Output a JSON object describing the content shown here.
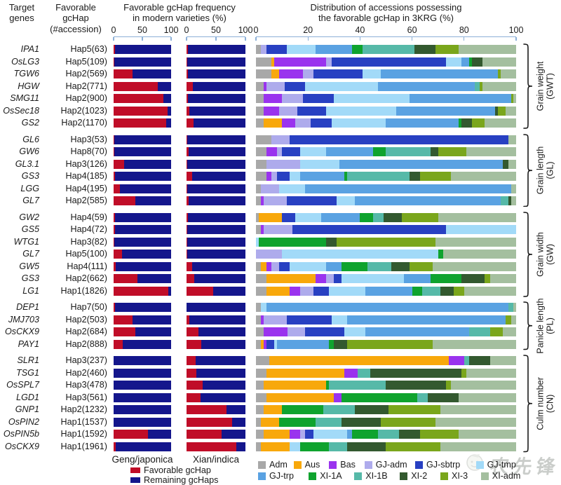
{
  "header": {
    "col_target_genes": "Target\ngenes",
    "col_favorable_gchap": "Favorable\ngcHap\n(#accession)",
    "col_freq_title": "Favorable gcHap frequency\nin modern varieties (%)",
    "col_dist_title": "Distribution of accessions possessing\nthe favorable gcHap in 3KRG (%)"
  },
  "footer": {
    "geng_label": "Geng/japonica",
    "xian_label": "Xian/indica",
    "stack_legend": [
      {
        "label": "Favorable gcHap",
        "color": "#c00d28"
      },
      {
        "label": "Remaining gcHaps",
        "color": "#14168c"
      }
    ]
  },
  "colors": {
    "favorable": "#c00d28",
    "remaining": "#14168c",
    "axis": "#8cb0d8",
    "categories": {
      "Adm": "#a8a8a8",
      "Aus": "#f8a80b",
      "Bas": "#9a33ee",
      "GJ-adm": "#aeabec",
      "GJ-sbtrp": "#2840c2",
      "GJ-tmp": "#a2daf8",
      "GJ-trp": "#5aa2e2",
      "XI-1A": "#0fa32e",
      "XI-1B": "#56b9a8",
      "XI-2": "#33592f",
      "XI-3": "#7aa61c",
      "XI-adm": "#a4bf9f"
    }
  },
  "legend": {
    "rows": [
      [
        "Adm",
        "Aus",
        "Bas",
        "GJ-adm",
        "GJ-sbtrp",
        "GJ-tmp"
      ],
      [
        "GJ-trp",
        "XI-1A",
        "XI-1B",
        "XI-2",
        "XI-3",
        "XI-adm"
      ]
    ]
  },
  "watermark": {
    "text": "农先锋"
  },
  "chart_data": {
    "type": "bar",
    "orientation": "horizontal",
    "charts": [
      {
        "id": "geng_freq",
        "title": "Geng/japonica",
        "xlim": [
          0,
          100
        ],
        "ticks": [
          0,
          50,
          100
        ],
        "stack": [
          "Favorable gcHap",
          "Remaining gcHaps"
        ]
      },
      {
        "id": "xian_freq",
        "title": "Xian/indica",
        "xlim": [
          0,
          100
        ],
        "ticks": [
          0,
          50,
          100
        ],
        "stack": [
          "Favorable gcHap",
          "Remaining gcHaps"
        ]
      },
      {
        "id": "dist_3krg",
        "title": "Distribution of accessions possessing the favorable gcHap in 3KRG (%)",
        "xlim": [
          0,
          100
        ],
        "ticks": [
          0,
          20,
          40,
          60,
          80,
          100
        ]
      }
    ],
    "dist_categories": [
      "Adm",
      "Aus",
      "Bas",
      "GJ-adm",
      "GJ-sbtrp",
      "GJ-tmp",
      "GJ-trp",
      "XI-1A",
      "XI-1B",
      "XI-2",
      "XI-3",
      "XI-adm"
    ],
    "groups": [
      {
        "trait": "Grain weight (GWT)",
        "trait_lines": "Grain weight\n(GWT)",
        "rows": [
          {
            "gene": "IPA1",
            "hap": "Hap5(63)",
            "geng_favorable_pct": 2,
            "xian_favorable_pct": 2,
            "dist_pct": [
              2,
              0,
              0,
              2,
              8,
              11,
              14,
              4,
              20,
              8,
              9,
              22
            ]
          },
          {
            "gene": "OsLG3",
            "hap": "Hap5(109)",
            "geng_favorable_pct": 1,
            "xian_favorable_pct": 1,
            "dist_pct": [
              6,
              1,
              20,
              2,
              44,
              6,
              3,
              1,
              0,
              4,
              0,
              13
            ]
          },
          {
            "gene": "TGW6",
            "hap": "Hap2(569)",
            "geng_favorable_pct": 33,
            "xian_favorable_pct": 2,
            "dist_pct": [
              6,
              3,
              9,
              4,
              19,
              7,
              45,
              0,
              0,
              0,
              1,
              6
            ]
          },
          {
            "gene": "HGW",
            "hap": "Hap2(771)",
            "geng_favorable_pct": 77,
            "xian_favorable_pct": 11,
            "dist_pct": [
              3,
              0,
              1,
              7,
              8,
              28,
              37,
              0,
              2,
              0,
              1,
              13
            ]
          },
          {
            "gene": "SMG11",
            "hap": "Hap2(900)",
            "geng_favorable_pct": 86,
            "xian_favorable_pct": 2,
            "dist_pct": [
              3,
              0,
              7,
              8,
              12,
              29,
              39,
              0,
              0,
              0,
              1,
              1
            ]
          },
          {
            "gene": "OsSec18",
            "hap": "Hap2(1023)",
            "geng_favorable_pct": 94,
            "xian_favorable_pct": 5,
            "dist_pct": [
              3,
              0,
              6,
              7,
              11,
              27,
              38,
              0,
              0,
              1,
              3,
              4
            ]
          },
          {
            "gene": "GS2",
            "hap": "Hap2(1170)",
            "geng_favorable_pct": 91,
            "xian_favorable_pct": 12,
            "dist_pct": [
              3,
              7,
              5,
              6,
              8,
              21,
              28,
              1,
              0,
              4,
              5,
              12
            ]
          }
        ]
      },
      {
        "trait": "Grain length (GL)",
        "trait_lines": "Grain length\n(GL)",
        "rows": [
          {
            "gene": "GL6",
            "hap": "Hap3(53)",
            "geng_favorable_pct": 1,
            "xian_favorable_pct": 1,
            "dist_pct": [
              6,
              0,
              0,
              7,
              84,
              0,
              0,
              0,
              0,
              0,
              0,
              3
            ]
          },
          {
            "gene": "GW6",
            "hap": "Hap8(70)",
            "geng_favorable_pct": 1,
            "xian_favorable_pct": 3,
            "dist_pct": [
              4,
              0,
              4,
              2,
              7,
              10,
              18,
              5,
              17,
              3,
              11,
              19
            ]
          },
          {
            "gene": "GL3.1",
            "hap": "Hap3(126)",
            "geng_favorable_pct": 18,
            "xian_favorable_pct": 1,
            "dist_pct": [
              4,
              0,
              0,
              13,
              0,
              15,
              63,
              0,
              0,
              2,
              0,
              3
            ]
          },
          {
            "gene": "GS3",
            "hap": "Hap4(185)",
            "geng_favorable_pct": 3,
            "xian_favorable_pct": 10,
            "dist_pct": [
              4,
              0,
              2,
              2,
              5,
              4,
              17,
              1,
              24,
              4,
              12,
              25
            ]
          },
          {
            "gene": "LGG",
            "hap": "Hap4(195)",
            "geng_favorable_pct": 11,
            "xian_favorable_pct": 1,
            "dist_pct": [
              2,
              0,
              0,
              7,
              0,
              10,
              79,
              0,
              0,
              0,
              0,
              2
            ]
          },
          {
            "gene": "GL7",
            "hap": "Hap2(585)",
            "geng_favorable_pct": 38,
            "xian_favorable_pct": 3,
            "dist_pct": [
              2,
              0,
              1,
              9,
              19,
              7,
              56,
              0,
              3,
              1,
              0,
              2
            ]
          }
        ]
      },
      {
        "trait": "Grain width (GW)",
        "trait_lines": "Grain width\n(GW)",
        "rows": [
          {
            "gene": "GW2",
            "hap": "Hap4(59)",
            "geng_favorable_pct": 3,
            "xian_favorable_pct": 2,
            "dist_pct": [
              1,
              9,
              0,
              0,
              5,
              10,
              15,
              5,
              4,
              7,
              14,
              30
            ]
          },
          {
            "gene": "GS5",
            "hap": "Hap4(72)",
            "geng_favorable_pct": 2,
            "xian_favorable_pct": 1,
            "dist_pct": [
              2,
              0,
              1,
              11,
              59,
              27,
              0,
              0,
              0,
              0,
              0,
              0
            ]
          },
          {
            "gene": "WTG1",
            "hap": "Hap3(82)",
            "geng_favorable_pct": 1,
            "xian_favorable_pct": 1,
            "dist_pct": [
              0,
              0,
              0,
              0,
              0,
              1,
              0,
              26,
              0,
              4,
              38,
              31
            ]
          },
          {
            "gene": "GL7",
            "hap": "Hap5(100)",
            "geng_favorable_pct": 15,
            "xian_favorable_pct": 1,
            "dist_pct": [
              0,
              0,
              0,
              10,
              0,
              60,
              0,
              2,
              0,
              0,
              0,
              28
            ]
          },
          {
            "gene": "GW5",
            "hap": "Hap4(111)",
            "geng_favorable_pct": 4,
            "xian_favorable_pct": 10,
            "dist_pct": [
              2,
              2,
              2,
              3,
              4,
              14,
              6,
              10,
              9,
              7,
              9,
              32
            ]
          },
          {
            "gene": "GS3",
            "hap": "Hap2(662)",
            "geng_favorable_pct": 42,
            "xian_favorable_pct": 13,
            "dist_pct": [
              4,
              19,
              4,
              3,
              3,
              24,
              10,
              12,
              0,
              9,
              2,
              10
            ]
          },
          {
            "gene": "LG1",
            "hap": "Hap1(1826)",
            "geng_favorable_pct": 95,
            "xian_favorable_pct": 45,
            "dist_pct": [
              4,
              9,
              4,
              5,
              6,
              14,
              18,
              4,
              7,
              5,
              4,
              20
            ]
          }
        ]
      },
      {
        "trait": "Panicle length (PL)",
        "trait_lines": "Panicle length\n(PL)",
        "rows": [
          {
            "gene": "DEP1",
            "hap": "Hap7(50)",
            "geng_favorable_pct": 2,
            "xian_favorable_pct": 0,
            "dist_pct": [
              2,
              0,
              0,
              0,
              0,
              2,
              93,
              0,
              2,
              0,
              0,
              1
            ]
          },
          {
            "gene": "JMJ703",
            "hap": "Hap2(503)",
            "geng_favorable_pct": 33,
            "xian_favorable_pct": 5,
            "dist_pct": [
              2,
              0,
              1,
              9,
              17,
              6,
              61,
              0,
              0,
              0,
              2,
              2
            ]
          },
          {
            "gene": "OsCKX9",
            "hap": "Hap2(684)",
            "geng_favorable_pct": 38,
            "xian_favorable_pct": 20,
            "dist_pct": [
              3,
              0,
              9,
              7,
              15,
              8,
              40,
              0,
              8,
              0,
              5,
              5
            ]
          },
          {
            "gene": "PAY1",
            "hap": "Hap2(888)",
            "geng_favorable_pct": 16,
            "xian_favorable_pct": 25,
            "dist_pct": [
              2,
              1,
              1,
              0,
              3,
              1,
              20,
              2,
              0,
              5,
              33,
              32
            ]
          }
        ]
      },
      {
        "trait": "Culm number (CN)",
        "trait_lines": "Culm number\n(CN)",
        "rows": [
          {
            "gene": "SLR1",
            "hap": "Hap3(237)",
            "geng_favorable_pct": 0,
            "xian_favorable_pct": 15,
            "dist_pct": [
              5,
              69,
              6,
              0,
              0,
              0,
              0,
              0,
              2,
              8,
              0,
              10
            ]
          },
          {
            "gene": "TSG1",
            "hap": "Hap2(460)",
            "geng_favorable_pct": 0,
            "xian_favorable_pct": 17,
            "dist_pct": [
              4,
              30,
              5,
              0,
              0,
              0,
              0,
              0,
              5,
              35,
              2,
              19
            ]
          },
          {
            "gene": "OsSPL7",
            "hap": "Hap3(478)",
            "geng_favorable_pct": 0,
            "xian_favorable_pct": 27,
            "dist_pct": [
              3,
              24,
              0,
              0,
              0,
              0,
              0,
              1,
              22,
              23,
              2,
              25
            ]
          },
          {
            "gene": "LGD1",
            "hap": "Hap3(561)",
            "geng_favorable_pct": 0,
            "xian_favorable_pct": 24,
            "dist_pct": [
              4,
              26,
              3,
              0,
              0,
              0,
              0,
              29,
              4,
              12,
              0,
              22
            ]
          },
          {
            "gene": "GNP1",
            "hap": "Hap2(1232)",
            "geng_favorable_pct": 0,
            "xian_favorable_pct": 68,
            "dist_pct": [
              3,
              7,
              0,
              0,
              0,
              0,
              0,
              16,
              12,
              13,
              20,
              29
            ]
          },
          {
            "gene": "OsPIN2",
            "hap": "Hap1(1537)",
            "geng_favorable_pct": 0,
            "xian_favorable_pct": 77,
            "dist_pct": [
              2,
              7,
              0,
              0,
              0,
              0,
              0,
              14,
              10,
              15,
              21,
              31
            ]
          },
          {
            "gene": "OsPIN5b",
            "hap": "Hap1(1592)",
            "geng_favorable_pct": 60,
            "xian_favorable_pct": 60,
            "dist_pct": [
              3,
              10,
              4,
              2,
              3,
              13,
              2,
              10,
              8,
              8,
              15,
              22
            ]
          },
          {
            "gene": "OsCKX9",
            "hap": "Hap1(1961)",
            "geng_favorable_pct": 4,
            "xian_favorable_pct": 85,
            "dist_pct": [
              2,
              11,
              0,
              0,
              0,
              4,
              0,
              11,
              7,
              15,
              21,
              29
            ]
          }
        ]
      }
    ]
  }
}
